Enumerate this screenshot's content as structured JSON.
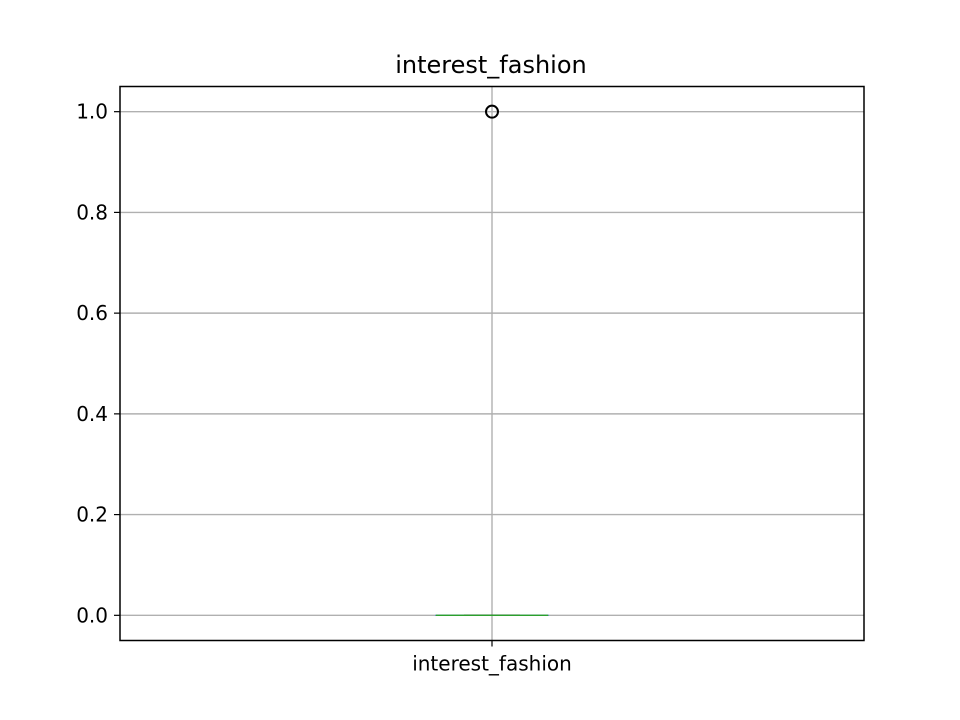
{
  "chart_data": {
    "type": "box",
    "title": "interest_fashion",
    "xlabel": "",
    "ylabel": "",
    "ylim": [
      -0.05,
      1.05
    ],
    "yticks": [
      0.0,
      0.2,
      0.4,
      0.6,
      0.8,
      1.0
    ],
    "ytick_labels": [
      "0.0",
      "0.2",
      "0.4",
      "0.6",
      "0.8",
      "1.0"
    ],
    "grid": true,
    "categories": [
      "interest_fashion"
    ],
    "boxes": [
      {
        "name": "interest_fashion",
        "min": 0.0,
        "q1": 0.0,
        "median": 0.0,
        "q3": 0.0,
        "max": 0.0,
        "outliers": [
          1.0
        ]
      }
    ],
    "colors": {
      "box": "#1f77b4",
      "median": "#2ca02c",
      "outlier": "#000000",
      "grid": "#b0b0b0",
      "axes": "#000000"
    }
  }
}
